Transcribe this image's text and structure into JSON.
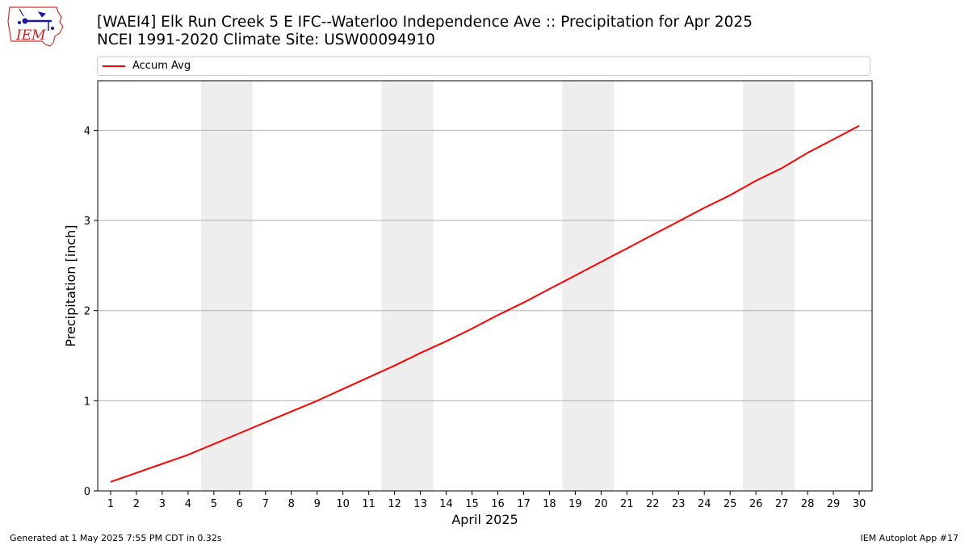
{
  "title": {
    "line1": "[WAEI4] Elk Run Creek 5 E IFC--Waterloo Independence Ave :: Precipitation for Apr 2025",
    "line2": "NCEI 1991-2020 Climate Site: USW00094910"
  },
  "logo": {
    "text": "IEM",
    "icon": "iem-iowa-map-logo"
  },
  "legend": {
    "placement": "top, full width above plot",
    "items": [
      {
        "label": "Accum Avg",
        "color": "#ff0000"
      }
    ]
  },
  "footer": {
    "left": "Generated at 1 May 2025 7:55 PM CDT in 0.32s",
    "right": "IEM Autoplot App #17"
  },
  "colors": {
    "line": "#ff0000",
    "weekend_shade": "#eeeeee",
    "grid": "#b0b0b0",
    "axis": "#000000"
  },
  "chart_data": {
    "type": "line",
    "xlabel": "April 2025",
    "ylabel": "Precipitation [inch]",
    "xlim": [
      0.5,
      30.5
    ],
    "ylim": [
      0,
      4.55
    ],
    "x_ticks": [
      1,
      2,
      3,
      4,
      5,
      6,
      7,
      8,
      9,
      10,
      11,
      12,
      13,
      14,
      15,
      16,
      17,
      18,
      19,
      20,
      21,
      22,
      23,
      24,
      25,
      26,
      27,
      28,
      29,
      30
    ],
    "y_ticks": [
      0,
      1,
      2,
      3,
      4
    ],
    "grid": "horizontal",
    "shaded_day_ranges": [
      [
        5,
        6
      ],
      [
        12,
        13
      ],
      [
        19,
        20
      ],
      [
        26,
        27
      ]
    ],
    "series": [
      {
        "name": "Accum Avg",
        "color": "#ff0000",
        "x": [
          1,
          2,
          3,
          4,
          5,
          6,
          7,
          8,
          9,
          10,
          11,
          12,
          13,
          14,
          15,
          16,
          17,
          18,
          19,
          20,
          21,
          22,
          23,
          24,
          25,
          26,
          27,
          28,
          29,
          30
        ],
        "values": [
          0.1,
          0.2,
          0.3,
          0.4,
          0.52,
          0.64,
          0.76,
          0.88,
          1.0,
          1.13,
          1.26,
          1.39,
          1.53,
          1.66,
          1.8,
          1.95,
          2.09,
          2.24,
          2.39,
          2.54,
          2.69,
          2.84,
          2.99,
          3.14,
          3.28,
          3.44,
          3.58,
          3.75,
          3.9,
          4.05
        ]
      }
    ]
  }
}
